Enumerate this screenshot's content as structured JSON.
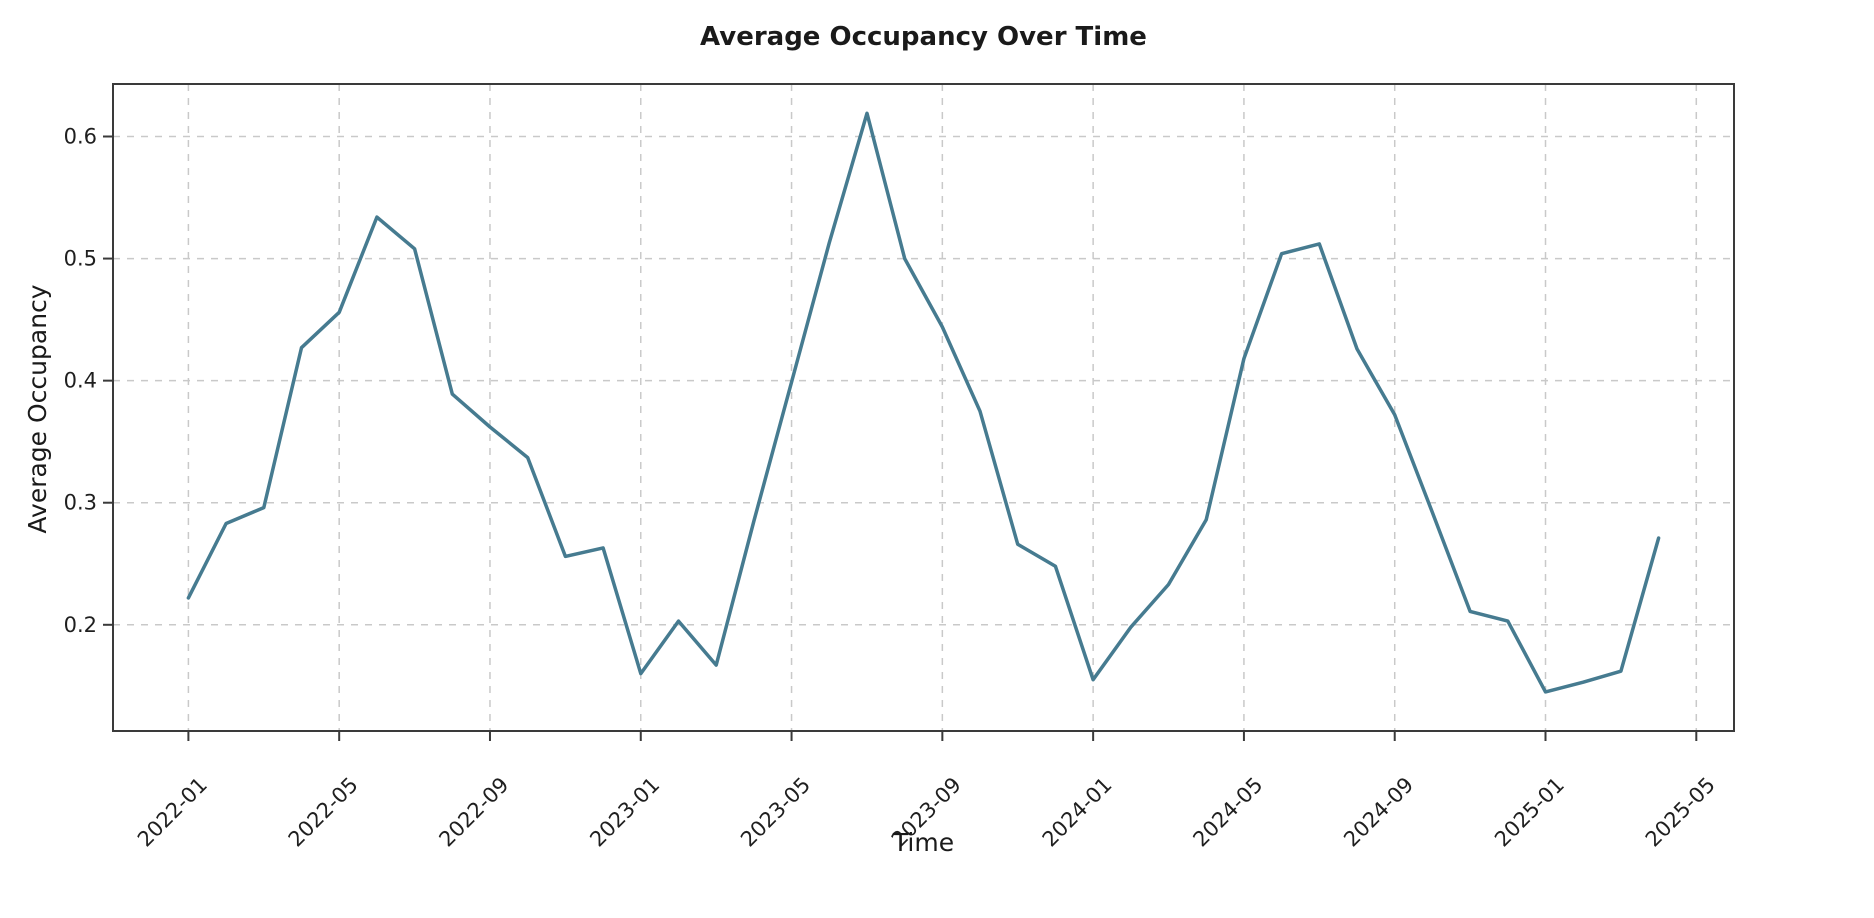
{
  "chart_data": {
    "type": "line",
    "title": "Average Occupancy Over Time",
    "xlabel": "Time",
    "ylabel": "Average Occupancy",
    "x": [
      "2022-01",
      "2022-02",
      "2022-03",
      "2022-04",
      "2022-05",
      "2022-06",
      "2022-07",
      "2022-08",
      "2022-09",
      "2022-10",
      "2022-11",
      "2022-12",
      "2023-01",
      "2023-02",
      "2023-03",
      "2023-04",
      "2023-05",
      "2023-06",
      "2023-07",
      "2023-08",
      "2023-09",
      "2023-10",
      "2023-11",
      "2023-12",
      "2024-01",
      "2024-02",
      "2024-03",
      "2024-04",
      "2024-05",
      "2024-06",
      "2024-07",
      "2024-08",
      "2024-09",
      "2024-10",
      "2024-11",
      "2024-12",
      "2025-01",
      "2025-02",
      "2025-03",
      "2025-04"
    ],
    "values": [
      0.222,
      0.283,
      0.296,
      0.427,
      0.456,
      0.534,
      0.508,
      0.389,
      0.362,
      0.337,
      0.256,
      0.263,
      0.16,
      0.203,
      0.167,
      0.285,
      0.399,
      0.513,
      0.619,
      0.5,
      0.444,
      0.375,
      0.266,
      0.248,
      0.155,
      0.198,
      0.233,
      0.286,
      0.418,
      0.504,
      0.512,
      0.426,
      0.372,
      0.292,
      0.211,
      0.203,
      0.145,
      0.153,
      0.162,
      0.271
    ],
    "x_ticks": [
      "2022-01",
      "2022-05",
      "2022-09",
      "2023-01",
      "2023-05",
      "2023-09",
      "2024-01",
      "2024-05",
      "2024-09",
      "2025-01",
      "2025-05"
    ],
    "y_ticks": [
      0.2,
      0.3,
      0.4,
      0.5,
      0.6
    ],
    "y_tick_labels": [
      "0.2",
      "0.3",
      "0.4",
      "0.5",
      "0.6"
    ],
    "xlim_months": [
      "2021-11",
      "2025-06"
    ],
    "ylim": [
      0.113,
      0.643
    ],
    "grid": true,
    "grid_style": "dashed",
    "legend": "none",
    "line_color": "#467b90",
    "grid_color": "#c9c9c9",
    "spine_color": "#3a3a3a",
    "text_color": "#1f1f1f"
  }
}
